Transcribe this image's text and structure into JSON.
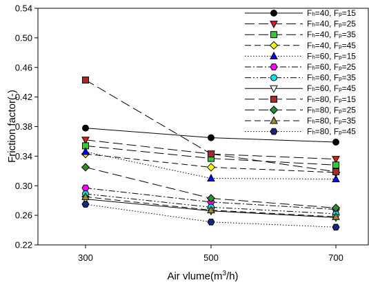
{
  "chart_data": {
    "type": "line",
    "xlabel_prefix": "Air vlume(m",
    "xlabel_sup": "3",
    "xlabel_suffix": "/h)",
    "ylabel": "Friction factor(-)",
    "x": [
      300,
      500,
      700
    ],
    "x_ticks": [
      "300",
      "500",
      "700"
    ],
    "ylim": [
      0.22,
      0.54
    ],
    "y_ticks": [
      "0.22",
      "0.26",
      "0.30",
      "0.34",
      "0.38",
      "0.42",
      "0.46",
      "0.50",
      "0.54"
    ],
    "legend_position": "top-right",
    "grid": false,
    "series": [
      {
        "fh": "40",
        "fp": "15",
        "sub_h": "h",
        "sub_p": "p",
        "name": "Fh=40, Fp=15",
        "values": [
          0.378,
          0.365,
          0.359
        ],
        "color": "#000000",
        "marker": "circle",
        "dash": "solid"
      },
      {
        "fh": "40",
        "fp": "25",
        "sub_h": "h",
        "sub_p": "p",
        "name": "Fh=40, Fp=25",
        "values": [
          0.362,
          0.343,
          0.336
        ],
        "color": "#e41a1c",
        "marker": "triangle-down",
        "dash": "long"
      },
      {
        "fh": "40",
        "fp": "35",
        "sub_h": "h",
        "sub_p": "p",
        "name": "Fh=40, Fp=35",
        "values": [
          0.354,
          0.337,
          0.328
        ],
        "color": "#33cc33",
        "marker": "square",
        "dash": "long"
      },
      {
        "fh": "40",
        "fp": "45",
        "sub_h": "h",
        "sub_p": "p",
        "name": "Fh=40, Fp=45",
        "values": [
          0.343,
          0.325,
          0.318
        ],
        "color": "#ffff00",
        "marker": "diamond",
        "dash": "medium"
      },
      {
        "fh": "60",
        "fp": "15",
        "sub_h": "h",
        "sub_p": "p",
        "name": "Fh=60, Fp=15",
        "values": [
          0.346,
          0.31,
          0.309
        ],
        "color": "#0000ff",
        "marker": "triangle-up",
        "dash": "dot"
      },
      {
        "fh": "60",
        "fp": "25",
        "sub_h": "h",
        "sub_p": "p",
        "name": "Fh=60, Fp=25",
        "values": [
          0.297,
          0.278,
          0.268
        ],
        "color": "#ff00ff",
        "marker": "hexagon",
        "dash": "dashdot"
      },
      {
        "fh": "60",
        "fp": "35",
        "sub_h": "h",
        "sub_p": "p",
        "name": "Fh=60, Fp=35",
        "values": [
          0.289,
          0.271,
          0.262
        ],
        "color": "#00e5e5",
        "marker": "circle",
        "dash": "dashdotdot"
      },
      {
        "fh": "60",
        "fp": "45",
        "sub_h": "h",
        "sub_p": "p",
        "name": "Fh=60, Fp=45",
        "values": [
          0.282,
          0.266,
          0.257
        ],
        "color": "#ffffff",
        "marker": "triangle-down",
        "dash": "solid"
      },
      {
        "fh": "80",
        "fp": "15",
        "sub_h": "h",
        "sub_p": "p",
        "name": "Fh=80, Fp=15",
        "values": [
          0.443,
          0.343,
          0.319
        ],
        "color": "#a52a2a",
        "marker": "square",
        "dash": "long"
      },
      {
        "fh": "80",
        "fp": "25",
        "sub_h": "h",
        "sub_p": "p",
        "name": "Fh=80, Fp=25",
        "values": [
          0.325,
          0.283,
          0.27
        ],
        "color": "#2e8b2e",
        "marker": "diamond",
        "dash": "long"
      },
      {
        "fh": "80",
        "fp": "35",
        "sub_h": "h",
        "sub_p": "p",
        "name": "Fh=80, Fp=35",
        "values": [
          0.285,
          0.267,
          0.258
        ],
        "color": "#9a8f2a",
        "marker": "triangle-up",
        "dash": "medium"
      },
      {
        "fh": "80",
        "fp": "45",
        "sub_h": "h",
        "sub_p": "p",
        "name": "Fh=80, Fp=45",
        "values": [
          0.275,
          0.251,
          0.244
        ],
        "color": "#1a237e",
        "marker": "hexagon",
        "dash": "dot"
      }
    ]
  }
}
